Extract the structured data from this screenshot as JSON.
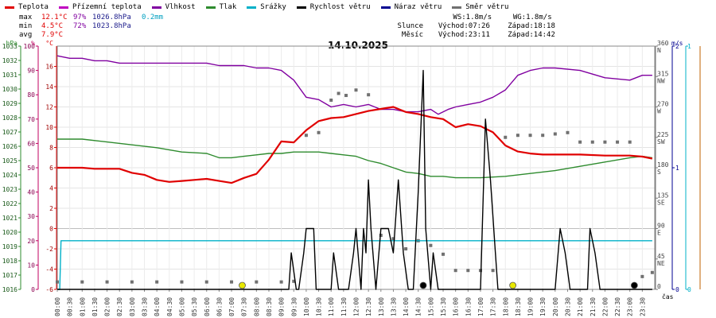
{
  "legend": [
    {
      "label": "Teplota",
      "color": "#e00000"
    },
    {
      "label": "Přízemní teplota",
      "color": "#c000c0"
    },
    {
      "label": "Vlhkost",
      "color": "#8000a0"
    },
    {
      "label": "Tlak",
      "color": "#2e8b2e"
    },
    {
      "label": "Srážky",
      "color": "#00b0c8"
    },
    {
      "label": "Rychlost větru",
      "color": "#000000"
    },
    {
      "label": "Náraz větru",
      "color": "#000090"
    },
    {
      "label": "Směr větru",
      "color": "#707070"
    }
  ],
  "stats": {
    "rows": [
      {
        "label": "max",
        "temp": "12.1°C",
        "hum": "97%",
        "press": "1026.8hPa",
        "rain": "0.2mm"
      },
      {
        "label": "min",
        "temp": "4.5°C",
        "hum": "72%",
        "press": "1023.8hPa",
        "rain": ""
      },
      {
        "label": "avg",
        "temp": "7.9°C",
        "hum": "",
        "press": "",
        "rain": ""
      }
    ]
  },
  "astro": {
    "ws": "WS:1.8m/s",
    "wg": "WG:1.8m/s",
    "sun": {
      "label": "Slunce",
      "rise": "Východ:07:26",
      "set": "Západ:18:18"
    },
    "moon": {
      "label": "Měsíc",
      "rise": "Východ:23:11",
      "set": "Západ:14:42"
    }
  },
  "chart_data": {
    "type": "line",
    "title": "14.10.2025",
    "xlabel": "čas",
    "x_ticks": [
      "00:00",
      "00:30",
      "01:00",
      "01:30",
      "02:00",
      "02:30",
      "03:00",
      "03:30",
      "04:00",
      "04:30",
      "05:00",
      "05:30",
      "06:00",
      "06:30",
      "07:00",
      "07:30",
      "08:00",
      "08:30",
      "09:00",
      "09:30",
      "10:00",
      "10:30",
      "11:00",
      "11:30",
      "12:00",
      "12:30",
      "13:00",
      "13:30",
      "14:00",
      "14:30",
      "15:00",
      "15:30",
      "16:00",
      "16:30",
      "17:00",
      "17:30",
      "18:00",
      "18:30",
      "19:00",
      "19:30",
      "20:00",
      "20:30",
      "21:00",
      "21:30",
      "22:00",
      "22:30",
      "23:00",
      "23:30"
    ],
    "axes": {
      "pressure": {
        "label": "hPa",
        "min": 1016,
        "max": 1033,
        "ticks": [
          1016,
          1017,
          1018,
          1019,
          1020,
          1021,
          1022,
          1023,
          1024,
          1025,
          1026,
          1027,
          1028,
          1029,
          1030,
          1031,
          1032,
          1033
        ]
      },
      "humidity": {
        "label": "%",
        "min": 0,
        "max": 100,
        "ticks": [
          0,
          10,
          20,
          30,
          40,
          50,
          60,
          70,
          80,
          90,
          100
        ]
      },
      "temperature": {
        "label": "°C",
        "min": -6,
        "max": 18,
        "ticks": [
          -6,
          -4,
          -2,
          0,
          2,
          4,
          6,
          8,
          10,
          12,
          14,
          16
        ]
      },
      "direction": {
        "min": 0,
        "max": 360,
        "ticks": [
          {
            "v": 0,
            "l": "0"
          },
          {
            "v": 45,
            "l": "45",
            "d": "NE"
          },
          {
            "v": 90,
            "l": "90",
            "d": "E"
          },
          {
            "v": 135,
            "l": "135",
            "d": "SE"
          },
          {
            "v": 180,
            "l": "180",
            "d": "S"
          },
          {
            "v": 225,
            "l": "225",
            "d": "SW"
          },
          {
            "v": 270,
            "l": "270",
            "d": "W"
          },
          {
            "v": 315,
            "l": "315",
            "d": "NW"
          },
          {
            "v": 360,
            "l": "360",
            "d": "N"
          }
        ]
      },
      "wind": {
        "label": "m/s",
        "min": 0,
        "max": 2,
        "ticks": [
          0,
          1,
          2
        ]
      },
      "rain": {
        "min": 0,
        "max": 1,
        "ticks": [
          0,
          1
        ]
      }
    },
    "series": [
      {
        "name": "Vlhkost",
        "axis": "humidity",
        "color": "#8000a0",
        "x": [
          0,
          0.5,
          1,
          1.5,
          2,
          2.5,
          3,
          4,
          5,
          6,
          6.5,
          7,
          7.5,
          8,
          8.5,
          9,
          9.5,
          10,
          10.5,
          11,
          11.5,
          12,
          12.5,
          13,
          13.5,
          14,
          14.5,
          15,
          15.3,
          15.7,
          16,
          16.5,
          17,
          17.5,
          18,
          18.5,
          19,
          19.5,
          20,
          21,
          22,
          23,
          23.5,
          23.9
        ],
        "y": [
          96,
          95,
          95,
          94,
          94,
          93,
          93,
          93,
          93,
          93,
          92,
          92,
          92,
          91,
          91,
          90,
          86,
          79,
          78,
          75,
          76,
          75,
          76,
          74,
          74,
          73,
          73,
          74,
          72,
          74,
          75,
          76,
          77,
          79,
          82,
          88,
          90,
          91,
          91,
          90,
          87,
          86,
          88,
          88
        ]
      },
      {
        "name": "Tlak",
        "axis": "pressure",
        "color": "#2e8b2e",
        "x": [
          0,
          1,
          2,
          3,
          4,
          5,
          6,
          6.5,
          7,
          7.5,
          8,
          8.5,
          9,
          9.5,
          10,
          10.5,
          11,
          11.5,
          12,
          12.5,
          13,
          13.5,
          14,
          14.5,
          15,
          15.5,
          16,
          16.5,
          17,
          18,
          19,
          20,
          21,
          22,
          23,
          23.5,
          23.9
        ],
        "y": [
          1026.5,
          1026.5,
          1026.3,
          1026.1,
          1025.9,
          1025.6,
          1025.5,
          1025.2,
          1025.2,
          1025.3,
          1025.4,
          1025.5,
          1025.5,
          1025.6,
          1025.6,
          1025.6,
          1025.5,
          1025.4,
          1025.3,
          1025.0,
          1024.8,
          1024.5,
          1024.2,
          1024.1,
          1023.9,
          1023.9,
          1023.8,
          1023.8,
          1023.8,
          1023.9,
          1024.1,
          1024.3,
          1024.6,
          1024.9,
          1025.2,
          1025.3,
          1025.2
        ]
      },
      {
        "name": "Teplota",
        "axis": "temperature",
        "color": "#e00000",
        "x": [
          0,
          0.5,
          1,
          1.5,
          2,
          2.5,
          3,
          3.5,
          4,
          4.5,
          5,
          5.5,
          6,
          6.5,
          7,
          7.5,
          8,
          8.5,
          9,
          9.5,
          10,
          10.5,
          11,
          11.5,
          12,
          12.5,
          13,
          13.5,
          14,
          14.5,
          15,
          15.5,
          16,
          16.5,
          17,
          17.5,
          18,
          18.5,
          19,
          19.5,
          20,
          21,
          22,
          23,
          23.5,
          23.9
        ],
        "y": [
          6.0,
          6.0,
          6.0,
          5.9,
          5.9,
          5.9,
          5.5,
          5.3,
          4.8,
          4.6,
          4.7,
          4.8,
          4.9,
          4.7,
          4.5,
          5.0,
          5.4,
          6.8,
          8.6,
          8.5,
          9.7,
          10.6,
          10.9,
          11.0,
          11.3,
          11.6,
          11.8,
          12.0,
          11.5,
          11.3,
          11.0,
          10.8,
          10.0,
          10.3,
          10.1,
          9.5,
          8.2,
          7.6,
          7.4,
          7.3,
          7.3,
          7.3,
          7.2,
          7.2,
          7.1,
          6.9
        ]
      },
      {
        "name": "Srážky",
        "axis": "rain",
        "color": "#00b0c8",
        "x": [
          0,
          0.1,
          0.15,
          23.9
        ],
        "y": [
          0,
          0,
          0.2,
          0.2
        ]
      },
      {
        "name": "Rychlost větru",
        "axis": "wind",
        "color": "#000000",
        "x": [
          0,
          9.3,
          9.4,
          9.6,
          9.7,
          9.9,
          10.0,
          10.1,
          10.3,
          10.4,
          10.5,
          10.6,
          11.0,
          11.1,
          11.3,
          11.5,
          11.7,
          11.9,
          12.0,
          12.2,
          12.3,
          12.4,
          12.5,
          12.6,
          12.8,
          13.0,
          13.3,
          13.5,
          13.7,
          13.9,
          14.1,
          14.3,
          14.5,
          14.7,
          14.8,
          15.0,
          15.1,
          15.3,
          15.5,
          15.7,
          16.0,
          16.5,
          17.0,
          17.2,
          17.4,
          17.6,
          17.7,
          17.9,
          18.0,
          18.2,
          18.4,
          18.5,
          18.7,
          19.0,
          19.5,
          20.0,
          20.2,
          20.4,
          20.6,
          20.8,
          21.0,
          21.3,
          21.4,
          21.6,
          21.8,
          22.0,
          22.5,
          23.0,
          23.9
        ],
        "y": [
          0,
          0,
          0.3,
          0,
          0,
          0.3,
          0.5,
          0.5,
          0.5,
          0,
          0,
          0,
          0,
          0.3,
          0,
          0,
          0,
          0.3,
          0.5,
          0,
          0.5,
          0.3,
          0.9,
          0.5,
          0,
          0.5,
          0.5,
          0.3,
          0.9,
          0.3,
          0,
          0,
          0.8,
          1.8,
          0.5,
          0,
          0.3,
          0,
          0,
          0,
          0,
          0,
          0,
          1.4,
          0.9,
          0.3,
          0,
          0,
          0,
          0,
          0,
          0,
          0,
          0,
          0,
          0,
          0.5,
          0.3,
          0,
          0,
          0,
          0,
          0.5,
          0.3,
          0,
          0,
          0,
          0,
          0
        ]
      },
      {
        "name": "Náraz větru",
        "axis": "wind",
        "color": "#000090",
        "x": [],
        "y": []
      }
    ],
    "wind_direction": {
      "axis": "direction",
      "color": "#707070",
      "x": [
        0,
        1,
        2,
        3,
        4,
        5,
        6,
        7,
        8,
        9,
        9.5,
        10,
        10.5,
        11,
        11.3,
        11.6,
        12,
        12.5,
        13,
        13.5,
        14,
        14.5,
        15,
        15.5,
        16,
        16.5,
        17,
        17.5,
        18,
        18.5,
        19,
        19.5,
        20,
        20.5,
        21,
        21.5,
        22,
        22.5,
        23,
        23.5,
        23.9
      ],
      "y": [
        11,
        11,
        11,
        11,
        11,
        11,
        11,
        11,
        11,
        11,
        12,
        228,
        232,
        280,
        290,
        287,
        295,
        288,
        80,
        75,
        60,
        72,
        65,
        52,
        28,
        28,
        28,
        28,
        225,
        228,
        228,
        228,
        230,
        232,
        218,
        218,
        218,
        218,
        218,
        19,
        25
      ]
    },
    "markers": [
      {
        "type": "sunrise",
        "time": 7.43,
        "color": "#e8e800"
      },
      {
        "type": "sunset",
        "time": 18.3,
        "color": "#e8e800"
      },
      {
        "type": "moonset",
        "time": 14.7,
        "color": "#000000"
      },
      {
        "type": "moonrise",
        "time": 23.18,
        "color": "#000000"
      }
    ]
  }
}
